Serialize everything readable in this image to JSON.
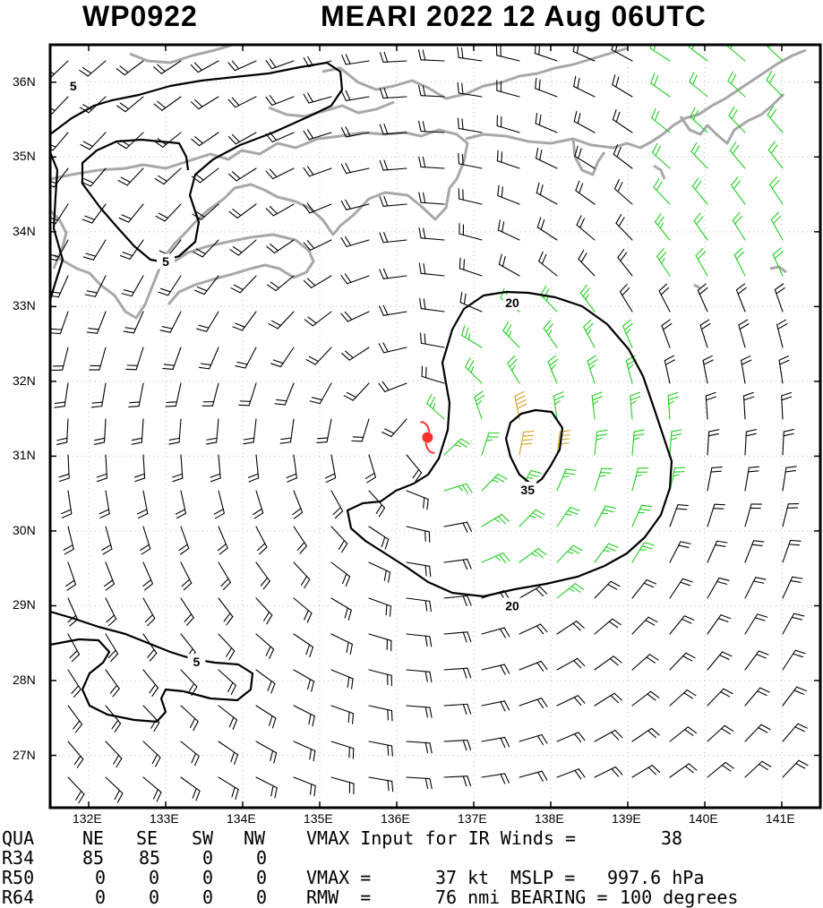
{
  "header": {
    "storm_id": "WP0922",
    "storm_label": "MEARI 2022 12 Aug 06UTC"
  },
  "map": {
    "lat_labels": [
      "36N",
      "35N",
      "34N",
      "33N",
      "32N",
      "31N",
      "30N",
      "29N",
      "28N",
      "27N"
    ],
    "lon_labels": [
      "132E",
      "133E",
      "134E",
      "135E",
      "136E",
      "137E",
      "138E",
      "139E",
      "140E",
      "141E"
    ],
    "lat_range": [
      26.3,
      36.5
    ],
    "lon_range": [
      131.5,
      141.5
    ],
    "contour_labels": [
      {
        "text": "5",
        "lon": 131.8,
        "lat": 35.95
      },
      {
        "text": "5",
        "lon": 133.0,
        "lat": 33.6
      },
      {
        "text": "5",
        "lon": 133.4,
        "lat": 28.25
      },
      {
        "text": "20",
        "lon": 137.5,
        "lat": 33.05
      },
      {
        "text": "20",
        "lon": 137.5,
        "lat": 29.0
      },
      {
        "text": "35",
        "lon": 137.7,
        "lat": 30.55
      }
    ],
    "storm_center": {
      "lon": 136.4,
      "lat": 31.25
    },
    "colors": {
      "coast": "#a8a8a8",
      "barb_weak": "#000000",
      "barb_gale": "#22cc22",
      "barb_storm": "#d4a020",
      "contour": "#000000",
      "storm_symbol": "#ff3030"
    }
  },
  "table": {
    "headers": [
      "QUA",
      "NE",
      "SE",
      "SW",
      "NW"
    ],
    "rows": [
      {
        "label": "R34",
        "values": [
          "85",
          "85",
          "0",
          "0"
        ]
      },
      {
        "label": "R50",
        "values": [
          "0",
          "0",
          "0",
          "0"
        ]
      },
      {
        "label": "R64",
        "values": [
          "0",
          "0",
          "0",
          "0"
        ]
      }
    ]
  },
  "info": {
    "vmax_input_label": "VMAX Input for IR Winds =",
    "vmax_input_value": "38",
    "vmax_label": "VMAX =",
    "vmax_value": "37 kt",
    "mslp_label": "MSLP =",
    "mslp_value": "997.6 hPa",
    "rmw_label": "RMW  =",
    "rmw_value": "76 nmi",
    "bearing_label": "BEARING =",
    "bearing_value": "100 degrees"
  }
}
